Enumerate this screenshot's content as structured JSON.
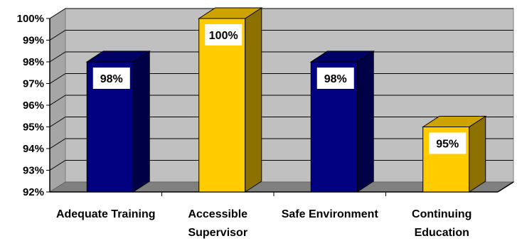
{
  "chart_data": {
    "type": "bar",
    "categories": [
      [
        "Adequate Training"
      ],
      [
        "Accessible",
        "Supervisor"
      ],
      [
        "Safe Environment"
      ],
      [
        "Continuing",
        "Education"
      ]
    ],
    "values": [
      98,
      100,
      98,
      95
    ],
    "data_labels": [
      "98%",
      "100%",
      "98%",
      "95%"
    ],
    "bar_colors": [
      "#000080",
      "#ffcc00",
      "#000080",
      "#ffcc00"
    ],
    "ylim": [
      92,
      100
    ],
    "yticks": [
      "92%",
      "93%",
      "94%",
      "95%",
      "96%",
      "97%",
      "98%",
      "99%",
      "100%"
    ],
    "grid": true,
    "style": "3d",
    "wall_color": "#c0c0c0",
    "title": "",
    "xlabel": "",
    "ylabel": ""
  }
}
